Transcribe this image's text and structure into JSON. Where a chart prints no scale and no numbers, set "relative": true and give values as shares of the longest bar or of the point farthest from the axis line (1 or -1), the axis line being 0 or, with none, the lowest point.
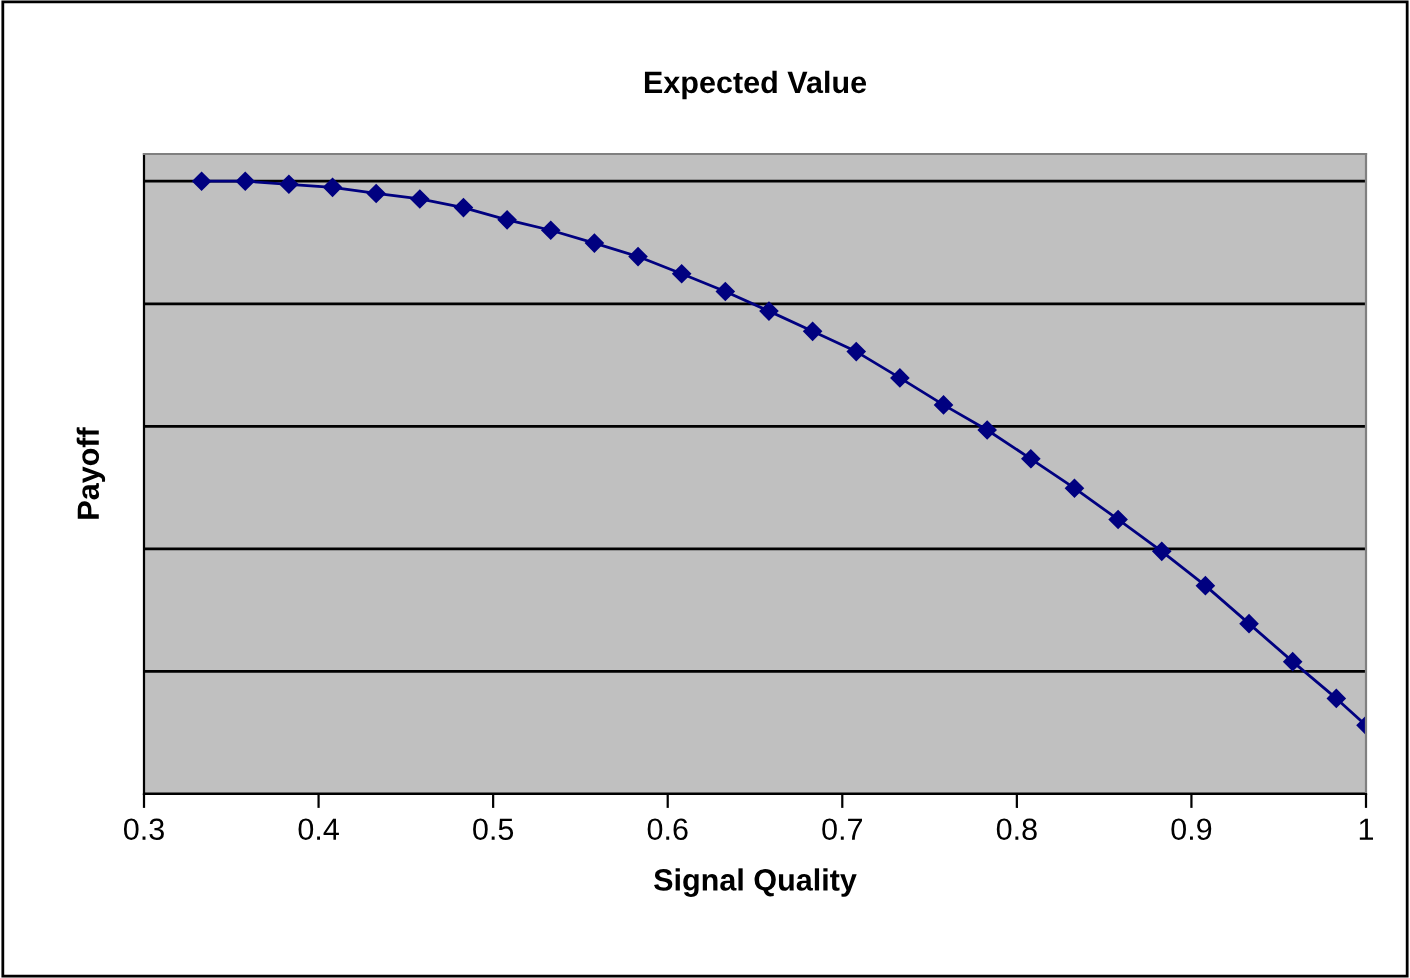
{
  "chart_data": {
    "type": "line",
    "title": "Expected Value",
    "xlabel": "Signal Quality",
    "ylabel": "Payoff",
    "relative": true,
    "grid": "y",
    "marker": "diamond",
    "line_style": "solid",
    "x": [
      0.333,
      0.358,
      0.383,
      0.408,
      0.433,
      0.458,
      0.483,
      0.508,
      0.533,
      0.558,
      0.583,
      0.608,
      0.633,
      0.658,
      0.683,
      0.708,
      0.733,
      0.758,
      0.783,
      0.808,
      0.833,
      0.858,
      0.883,
      0.908,
      0.933,
      0.958,
      0.983,
      1.0
    ],
    "series": [
      {
        "color": "#000080",
        "values": [
          1,
          1,
          0.995,
          0.99,
          0.98,
          0.971,
          0.957,
          0.937,
          0.92,
          0.899,
          0.877,
          0.849,
          0.82,
          0.788,
          0.755,
          0.722,
          0.679,
          0.635,
          0.594,
          0.547,
          0.499,
          0.448,
          0.396,
          0.34,
          0.278,
          0.216,
          0.156,
          0.112
        ]
      }
    ],
    "xlim": [
      0.3,
      1
    ],
    "xticks": [
      0.3,
      0.4,
      0.5,
      0.6,
      0.7,
      0.8,
      0.9,
      {
        "value": 1,
        "label": "1"
      }
    ]
  }
}
